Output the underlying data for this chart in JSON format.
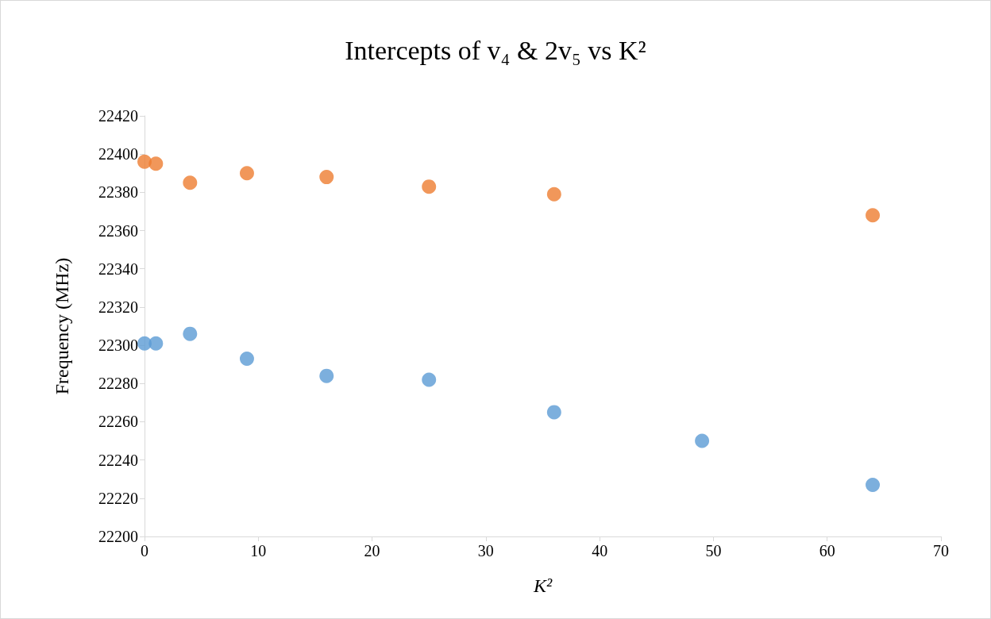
{
  "chart_data": {
    "type": "scatter",
    "title": "Intercepts of v₄ & 2v₅ vs K²",
    "xlabel": "K²",
    "ylabel": "Frequency (MHz)",
    "series": [
      {
        "color": "#ed7d31",
        "x": [
          0,
          1,
          4,
          9,
          16,
          25,
          36,
          64
        ],
        "values": [
          22396,
          22395,
          22385,
          22390,
          22388,
          22383,
          22379,
          22368
        ]
      },
      {
        "color": "#5b9bd5",
        "x": [
          0,
          1,
          4,
          9,
          16,
          25,
          36,
          49,
          64
        ],
        "values": [
          22301,
          22301,
          22306,
          22293,
          22284,
          22282,
          22265,
          22250,
          22227
        ]
      }
    ],
    "xlim": [
      0,
      70
    ],
    "xticks": [
      0,
      10,
      20,
      30,
      40,
      50,
      60,
      70
    ],
    "ylim": [
      22200,
      22420
    ],
    "yticks": [
      22200,
      22220,
      22240,
      22260,
      22280,
      22300,
      22320,
      22340,
      22360,
      22380,
      22400,
      22420
    ],
    "grid": false,
    "marker": "circle"
  }
}
